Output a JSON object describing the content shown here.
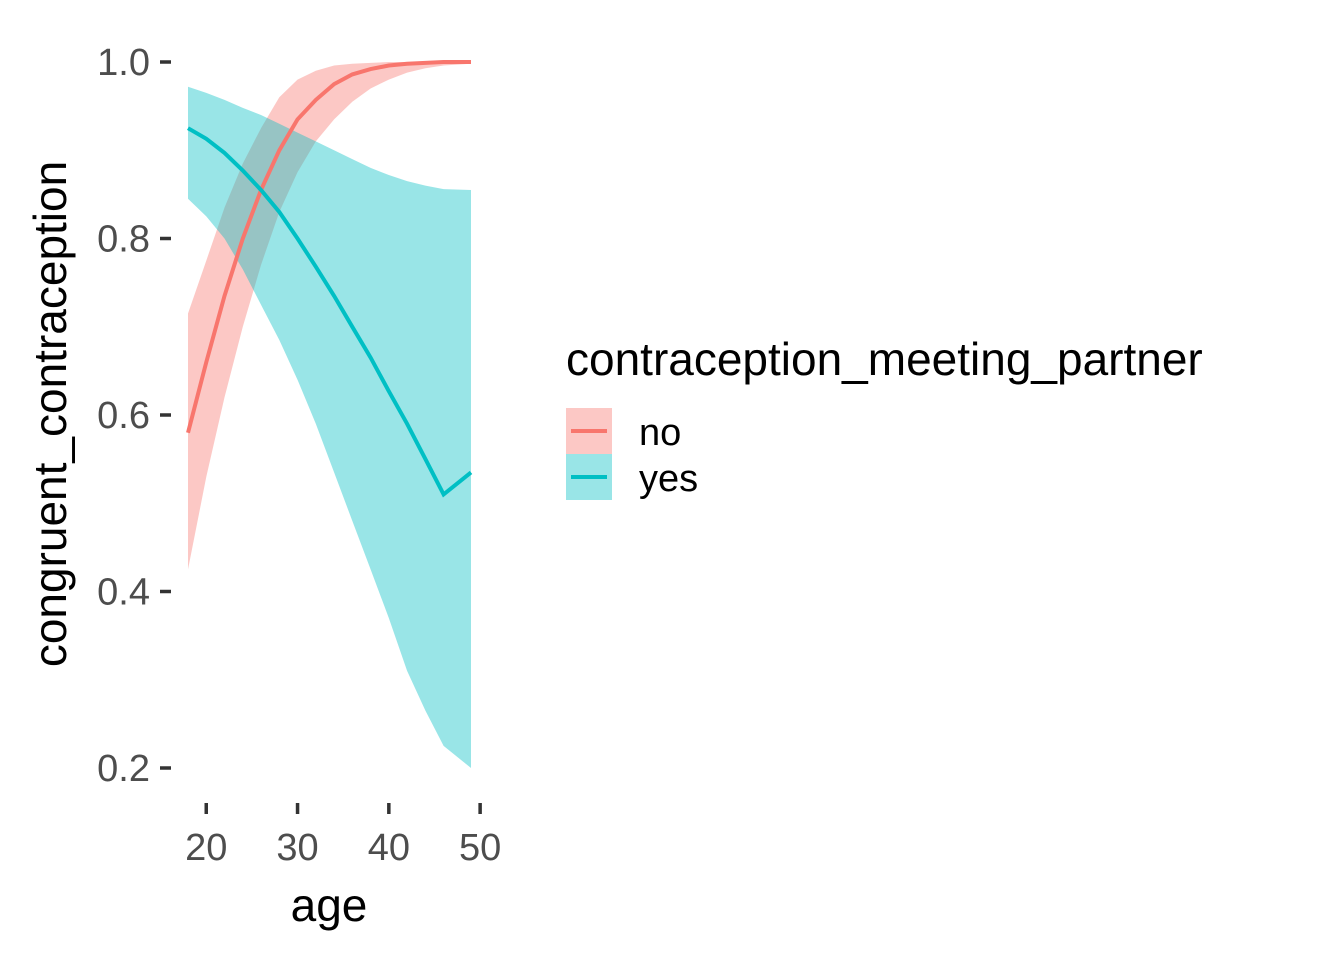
{
  "chart_data": {
    "type": "line",
    "xlabel": "age",
    "ylabel": "congruent_contraception",
    "xlim": [
      18,
      49
    ],
    "ylim": [
      0.2,
      1.0
    ],
    "x_ticks": [
      20,
      30,
      40,
      50
    ],
    "y_ticks": [
      0.2,
      0.4,
      0.6,
      0.8,
      1.0
    ],
    "x_tick_labels": [
      "20",
      "30",
      "40",
      "50"
    ],
    "y_tick_labels": [
      "0.2",
      "0.4",
      "0.6",
      "0.8",
      "1.0"
    ],
    "grid": false,
    "legend": {
      "title": "contraception_meeting_partner",
      "position": "right"
    },
    "x": [
      18,
      20,
      22,
      24,
      26,
      28,
      30,
      32,
      34,
      36,
      38,
      40,
      42,
      44,
      46,
      49
    ],
    "series": [
      {
        "name": "no",
        "color": "#F8766D",
        "fill": "#F8766D",
        "values": [
          0.58,
          0.66,
          0.735,
          0.8,
          0.855,
          0.9,
          0.935,
          0.957,
          0.975,
          0.986,
          0.992,
          0.996,
          0.998,
          0.999,
          1.0,
          1.0
        ],
        "lower": [
          0.425,
          0.53,
          0.62,
          0.7,
          0.77,
          0.83,
          0.875,
          0.91,
          0.935,
          0.955,
          0.97,
          0.98,
          0.988,
          0.993,
          0.996,
          0.998
        ],
        "upper": [
          0.715,
          0.775,
          0.835,
          0.885,
          0.925,
          0.96,
          0.98,
          0.99,
          0.996,
          0.998,
          0.999,
          1.0,
          1.0,
          1.0,
          1.0,
          1.0
        ]
      },
      {
        "name": "yes",
        "color": "#00BFC4",
        "fill": "#00BFC4",
        "values": [
          0.925,
          0.913,
          0.897,
          0.877,
          0.855,
          0.83,
          0.8,
          0.768,
          0.735,
          0.7,
          0.665,
          0.627,
          0.59,
          0.55,
          0.51,
          0.535
        ],
        "lower": [
          0.845,
          0.825,
          0.8,
          0.765,
          0.725,
          0.685,
          0.64,
          0.59,
          0.535,
          0.48,
          0.425,
          0.37,
          0.31,
          0.265,
          0.225,
          0.2
        ],
        "upper": [
          0.972,
          0.965,
          0.957,
          0.948,
          0.94,
          0.93,
          0.92,
          0.91,
          0.9,
          0.89,
          0.88,
          0.872,
          0.865,
          0.86,
          0.856,
          0.855
        ]
      }
    ]
  }
}
